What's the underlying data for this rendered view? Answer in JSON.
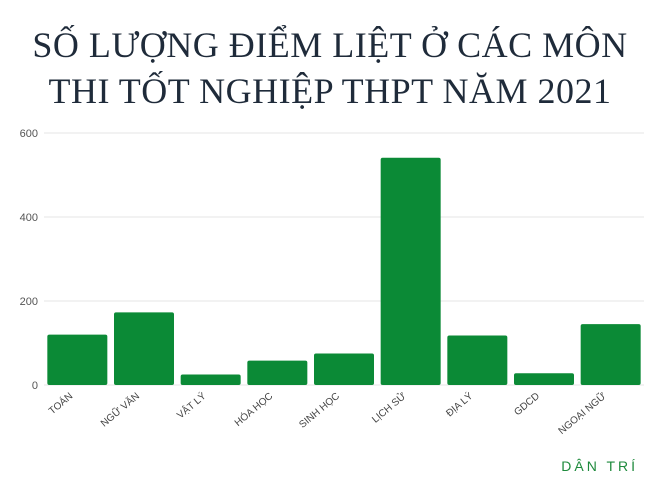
{
  "title_line1": "SỐ LƯỢNG ĐIỂM LIỆT Ở CÁC MÔN",
  "title_line2": "THI TỐT NGHIỆP THPT NĂM 2021",
  "brand": "DÂN TRÍ",
  "colors": {
    "bar": "#0b8a36",
    "grid": "#e6e6e6",
    "title": "#1f2b3a",
    "brand": "#1e8a3c"
  },
  "chart_data": {
    "type": "bar",
    "title": "SỐ LƯỢNG ĐIỂM LIỆT Ở CÁC MÔN THI TỐT NGHIỆP THPT NĂM 2021",
    "xlabel": "",
    "ylabel": "",
    "categories": [
      "TOÁN",
      "NGỮ VĂN",
      "VẬT LÝ",
      "HÓA HỌC",
      "SINH HỌC",
      "LỊCH SỬ",
      "ĐỊA LÝ",
      "GDCD",
      "NGOẠI NGỮ"
    ],
    "values": [
      120,
      173,
      25,
      58,
      75,
      541,
      118,
      28,
      145
    ],
    "ylim": [
      0,
      600
    ],
    "yticks": [
      0,
      200,
      400,
      600
    ],
    "grid": true,
    "legend": "none"
  }
}
